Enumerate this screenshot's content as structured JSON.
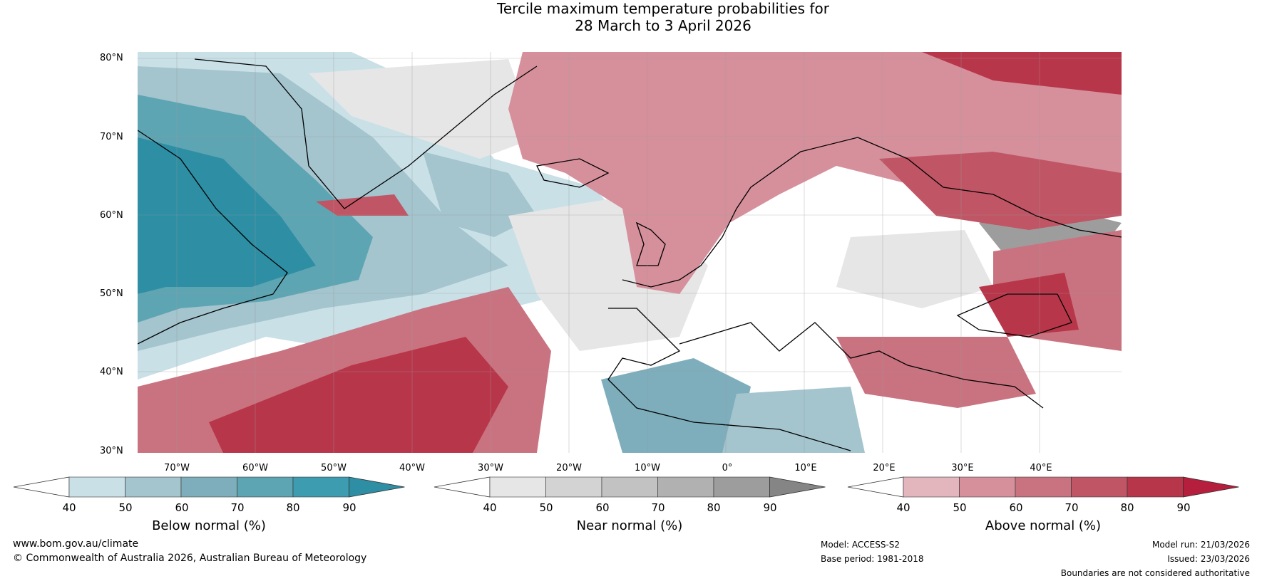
{
  "title": {
    "line1": "Tercile maximum temperature probabilities for",
    "line2": "28 March to 3 April 2026"
  },
  "map": {
    "lat_labels": [
      "80°N",
      "70°N",
      "60°N",
      "50°N",
      "40°N",
      "30°N"
    ],
    "lon_labels": [
      "70°W",
      "60°W",
      "50°W",
      "40°W",
      "30°W",
      "20°W",
      "10°W",
      "0°",
      "10°E",
      "20°E",
      "30°E",
      "40°E"
    ],
    "colors": {
      "below": [
        "#c9e0e7",
        "#a4c4ce",
        "#7eaebc",
        "#5ea5b3",
        "#3d9cb0",
        "#2d8ea4"
      ],
      "near": [
        "#e6e6e6",
        "#d3d3d3",
        "#c2c2c2",
        "#b1b1b1",
        "#9d9d9d",
        "#858585"
      ],
      "above": [
        "#e3b5bd",
        "#d6909c",
        "#c97380",
        "#c05565",
        "#b8364a",
        "#b51e3d"
      ]
    }
  },
  "colorbars": [
    {
      "title": "Below normal (%)",
      "ticks": [
        "40",
        "50",
        "60",
        "70",
        "80",
        "90"
      ],
      "scheme": "below"
    },
    {
      "title": "Near normal (%)",
      "ticks": [
        "40",
        "50",
        "60",
        "70",
        "80",
        "90"
      ],
      "scheme": "near"
    },
    {
      "title": "Above normal (%)",
      "ticks": [
        "40",
        "50",
        "60",
        "70",
        "80",
        "90"
      ],
      "scheme": "above"
    }
  ],
  "footer": {
    "website": "www.bom.gov.au/climate",
    "copyright": "© Commonwealth of Australia 2026, Australian Bureau of Meteorology",
    "model": "Model: ACCESS-S2",
    "base_period": "Base period: 1981-2018",
    "model_run": "Model run: 21/03/2026",
    "issued": "Issued: 23/03/2026",
    "disclaimer": "Boundaries are not considered authoritative"
  }
}
